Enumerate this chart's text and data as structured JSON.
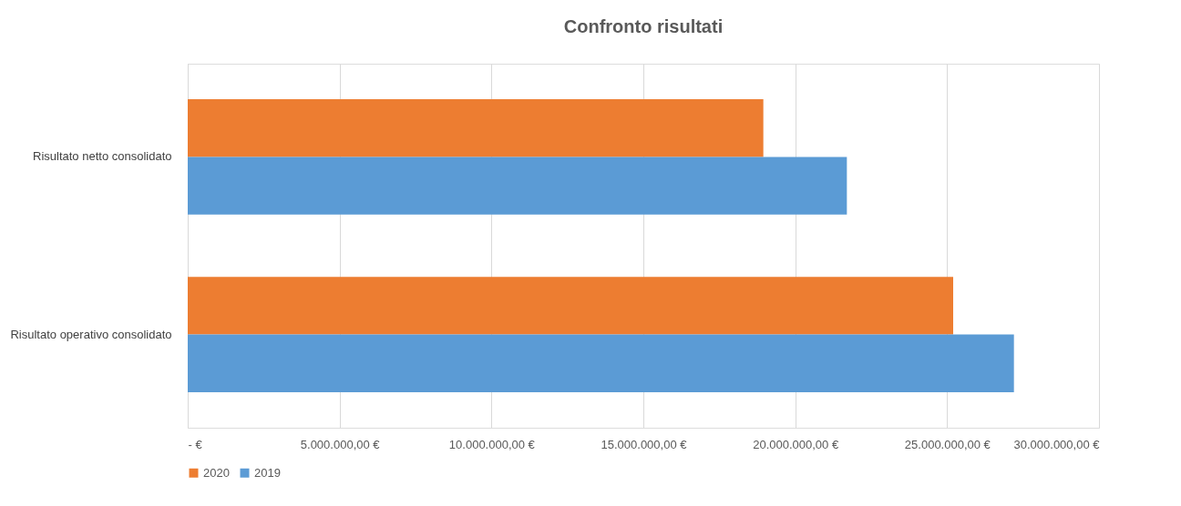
{
  "chart_data": {
    "type": "bar",
    "orientation": "horizontal",
    "title": "Confronto risultati",
    "categories": [
      "Risultato netto consolidato",
      "Risultato operativo consolidato"
    ],
    "series": [
      {
        "name": "2020",
        "color": "#ed7d31",
        "values": [
          18950000,
          25200000
        ]
      },
      {
        "name": "2019",
        "color": "#5b9bd5",
        "values": [
          21700000,
          27200000
        ]
      }
    ],
    "xlim": [
      0,
      30000000
    ],
    "xticks": [
      {
        "value": 0,
        "label": "-   €"
      },
      {
        "value": 5000000,
        "label": "5.000.000,00 €"
      },
      {
        "value": 10000000,
        "label": "10.000.000,00 €"
      },
      {
        "value": 15000000,
        "label": "15.000.000,00 €"
      },
      {
        "value": 20000000,
        "label": "20.000.000,00 €"
      },
      {
        "value": 25000000,
        "label": "25.000.000,00 €"
      },
      {
        "value": 30000000,
        "label": "30.000.000,00 €"
      }
    ],
    "grid": "x",
    "legend": "bottom"
  }
}
